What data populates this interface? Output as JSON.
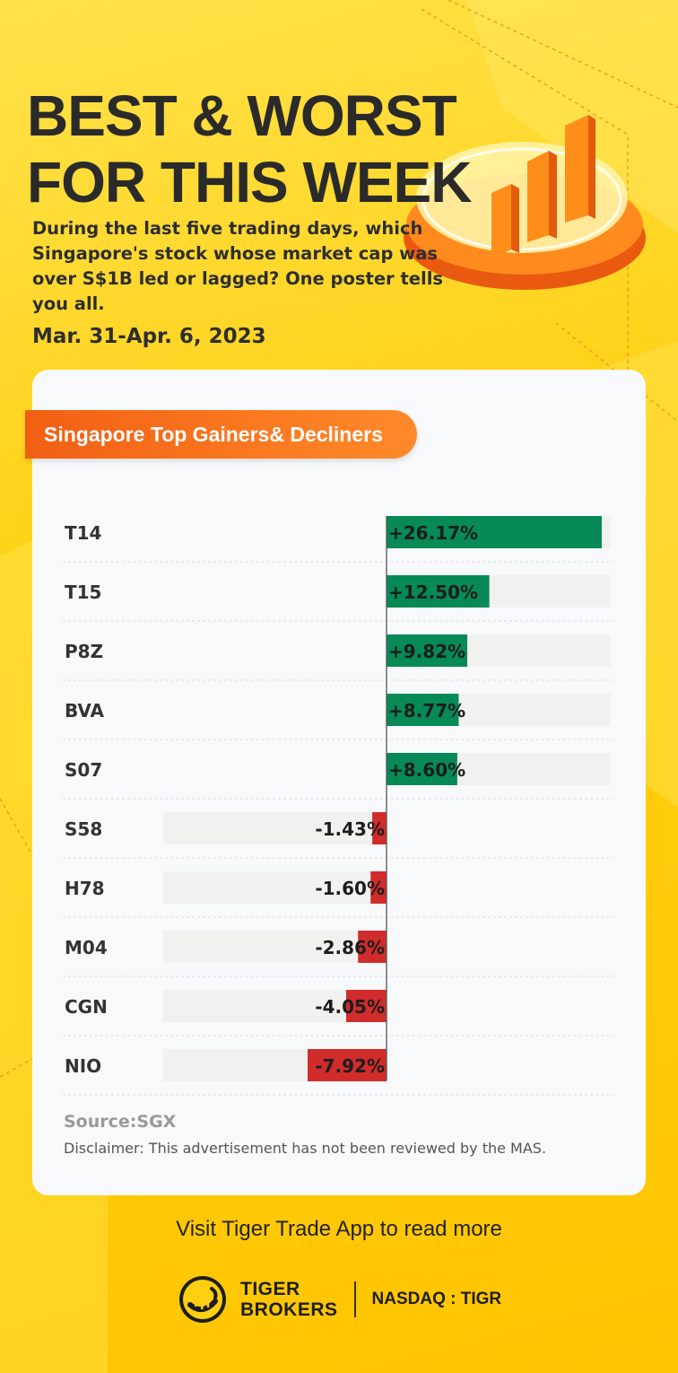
{
  "header": {
    "title_line1": "BEST & WORST",
    "title_line2": "FOR THIS WEEK",
    "subtitle": "During the last five trading days, which Singapore's stock whose market cap was over S$1B led or lagged? One poster tells you all.",
    "date": "Mar. 31-Apr. 6, 2023"
  },
  "card": {
    "pill_label": "Singapore Top Gainers& Decliners",
    "source": "Source:SGX",
    "disclaimer": "Disclaimer: This advertisement has not been reviewed by the MAS."
  },
  "footer": {
    "cta": "Visit Tiger Trade App to read more",
    "brand_line1": "TIGER",
    "brand_line2": "BROKERS",
    "ticker": "NASDAQ : TIGR"
  },
  "colors": {
    "gain": "#078a55",
    "loss": "#d12c2c",
    "track": "#f1f1ef",
    "accent": "#f25f13"
  },
  "chart_data": {
    "type": "bar",
    "orientation": "horizontal",
    "categories": [
      "T14",
      "T15",
      "P8Z",
      "BVA",
      "S07",
      "S58",
      "H78",
      "M04",
      "CGN",
      "NIO"
    ],
    "values": [
      26.17,
      12.5,
      9.82,
      8.77,
      8.6,
      -1.43,
      -1.6,
      -2.86,
      -4.05,
      -7.92
    ],
    "labels": [
      "+26.17%",
      "+12.50%",
      "+9.82%",
      "+8.77%",
      "+8.60%",
      "-1.43%",
      "-1.60%",
      "-2.86%",
      "-4.05%",
      "-7.92%"
    ],
    "unit": "%"
  }
}
